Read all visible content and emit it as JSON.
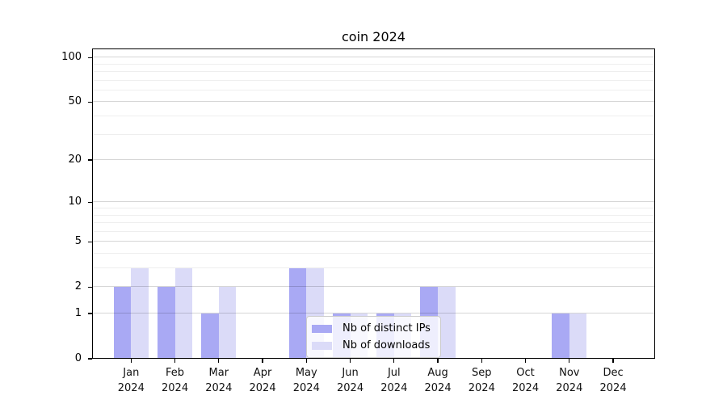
{
  "chart_data": {
    "type": "bar",
    "title": "coin 2024",
    "yscale": "log1p",
    "ylim": [
      0,
      115
    ],
    "grid": true,
    "legend_position": "lower center",
    "categories": [
      "Jan",
      "Feb",
      "Mar",
      "Apr",
      "May",
      "Jun",
      "Jul",
      "Aug",
      "Sep",
      "Oct",
      "Nov",
      "Dec"
    ],
    "category_year": "2024",
    "series": [
      {
        "name": "Nb of distinct IPs",
        "color": "#a9a9f4",
        "values": [
          2,
          2,
          1,
          0,
          3,
          1,
          1,
          2,
          0,
          0,
          1,
          0
        ]
      },
      {
        "name": "Nb of downloads",
        "color": "#dbdbf8",
        "values": [
          3,
          3,
          2,
          0,
          3,
          1,
          1,
          2,
          0,
          0,
          1,
          0
        ]
      }
    ],
    "yticks": [
      {
        "value": 0,
        "label": "0"
      },
      {
        "value": 1,
        "label": "1"
      },
      {
        "value": 2,
        "label": "2"
      },
      {
        "value": 5,
        "label": "5"
      },
      {
        "value": 10,
        "label": "10"
      },
      {
        "value": 20,
        "label": "20"
      },
      {
        "value": 50,
        "label": "50"
      },
      {
        "value": 100,
        "label": "100"
      }
    ],
    "minor_gridlines": [
      3,
      4,
      6,
      7,
      8,
      9,
      30,
      40,
      60,
      70,
      80,
      90
    ]
  },
  "colors": {
    "background": "#ffffff",
    "spine": "#000000",
    "text": "#000000"
  }
}
